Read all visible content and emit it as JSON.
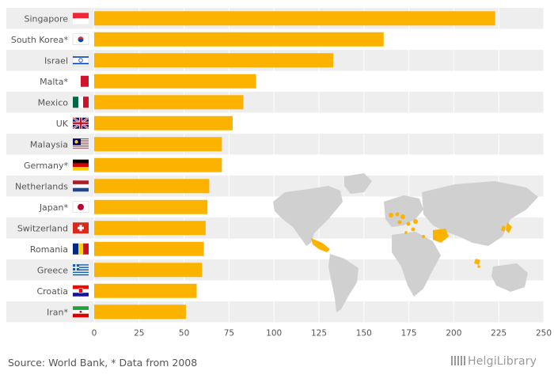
{
  "chart_data": {
    "type": "bar",
    "orientation": "horizontal",
    "categories": [
      "Singapore",
      "South Korea*",
      "Israel",
      "Malta*",
      "Mexico",
      "UK",
      "Malaysia",
      "Germany*",
      "Netherlands",
      "Japan*",
      "Switzerland",
      "Romania",
      "Greece",
      "Croatia",
      "Iran*"
    ],
    "values": [
      223,
      161,
      133,
      90,
      83,
      77,
      71,
      71,
      64,
      63,
      62,
      61,
      60,
      57,
      51
    ],
    "xlim": [
      0,
      250
    ],
    "xticks": [
      0,
      25,
      50,
      75,
      100,
      125,
      150,
      175,
      200,
      225,
      250
    ],
    "title": "",
    "xlabel": "",
    "ylabel": "",
    "bar_color": "#fbb300",
    "band_color": "#eeeeee",
    "grid": true
  },
  "footer": {
    "source": "Source: World Bank, * Data from 2008",
    "logo": "HelgiLibrary"
  },
  "colors": {
    "map_land": "#d0d0d0",
    "map_highlight": "#fbb300"
  }
}
